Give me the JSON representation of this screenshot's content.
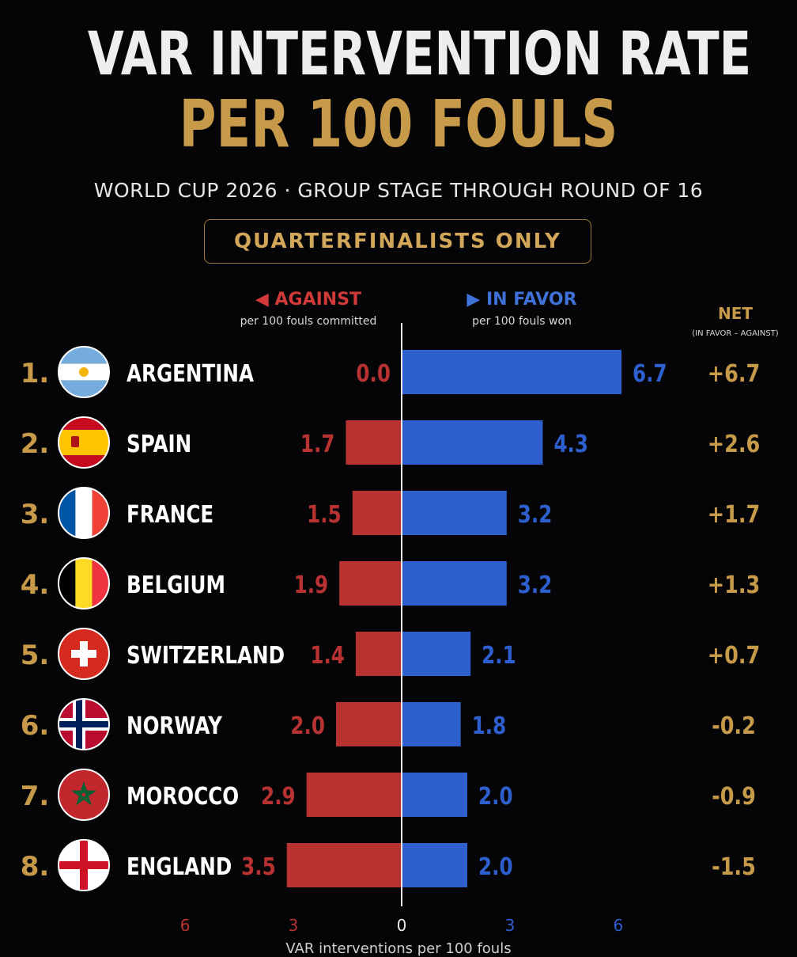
{
  "title_line1": "VAR INTERVENTION RATE",
  "title_line2": "PER 100 FOULS",
  "subtitle": "WORLD CUP 2026 · GROUP STAGE THROUGH ROUND OF 16",
  "badge": "QUARTERFINALISTS ONLY",
  "headers": {
    "against": "◀ AGAINST",
    "against_sub": "per 100 fouls committed",
    "in_favor": "▶ IN FAVOR",
    "in_favor_sub": "per 100 fouls won",
    "net": "NET",
    "net_sub": "(IN FAVOR – AGAINST)"
  },
  "footer": "VAR interventions per 100 fouls",
  "colors": {
    "against": "#b83232",
    "in_favor": "#2e5fcf",
    "gold": "#c79a4a"
  },
  "chart_data": {
    "type": "bar",
    "orientation": "horizontal-diverging",
    "categories": [
      "ARGENTINA",
      "SPAIN",
      "FRANCE",
      "BELGIUM",
      "SWITZERLAND",
      "NORWAY",
      "MOROCCO",
      "ENGLAND"
    ],
    "ranks": [
      "1.",
      "2.",
      "3.",
      "4.",
      "5.",
      "6.",
      "7.",
      "8."
    ],
    "flags": [
      "argentina-flag-icon",
      "spain-flag-icon",
      "france-flag-icon",
      "belgium-flag-icon",
      "switzerland-flag-icon",
      "norway-flag-icon",
      "morocco-flag-icon",
      "england-flag-icon"
    ],
    "series": [
      {
        "name": "AGAINST",
        "values": [
          0.0,
          1.7,
          1.5,
          1.9,
          1.4,
          2.0,
          2.9,
          3.5
        ],
        "labels": [
          "0.0",
          "1.7",
          "1.5",
          "1.9",
          "1.4",
          "2.0",
          "2.9",
          "3.5"
        ]
      },
      {
        "name": "IN FAVOR",
        "values": [
          6.7,
          4.3,
          3.2,
          3.2,
          2.1,
          1.8,
          2.0,
          2.0
        ],
        "labels": [
          "6.7",
          "4.3",
          "3.2",
          "3.2",
          "2.1",
          "1.8",
          "2.0",
          "2.0"
        ]
      }
    ],
    "net": [
      "+6.7",
      "+2.6",
      "+1.7",
      "+1.3",
      "+0.7",
      "-0.2",
      "-0.9",
      "-1.5"
    ],
    "x_ticks": [
      "6",
      "3",
      "0",
      "3",
      "6"
    ],
    "xlim": [
      -6,
      6
    ]
  }
}
